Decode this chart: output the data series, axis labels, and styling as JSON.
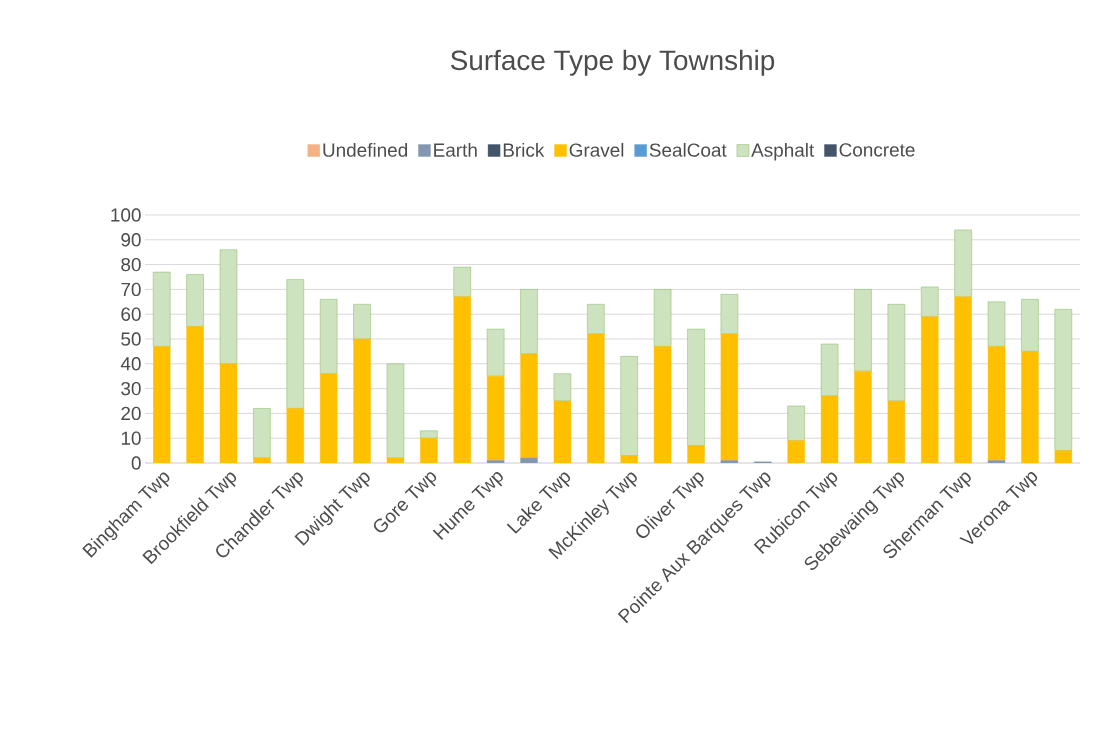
{
  "chart_data": {
    "type": "bar",
    "title": "Surface Type by Township",
    "stacked": true,
    "categories": [
      "Bingham Twp",
      null,
      "Brookfield Twp",
      null,
      "Chandler Twp",
      null,
      "Dwight Twp",
      null,
      "Gore Twp",
      null,
      "Hume Twp",
      null,
      "Lake Twp",
      null,
      "McKinley Twp",
      null,
      "Oliver Twp",
      null,
      "Pointe Aux Barques Twp",
      null,
      "Rubicon Twp",
      null,
      "Sebewaing Twp",
      null,
      "Sherman Twp",
      null,
      "Verona Twp",
      null
    ],
    "series": [
      {
        "name": "Undefined",
        "color": "#f4b183",
        "values": [
          0,
          0,
          0,
          0,
          0,
          0,
          0,
          0,
          0,
          0,
          0,
          0,
          0,
          0,
          0,
          0,
          0,
          0,
          0,
          0,
          0,
          0,
          0,
          0,
          0,
          0,
          0,
          0
        ]
      },
      {
        "name": "Earth",
        "color": "#8497b0",
        "values": [
          0,
          0,
          0,
          0,
          0,
          0,
          0,
          0,
          0,
          0,
          1,
          2,
          0,
          0,
          0,
          0,
          0,
          1,
          0.5,
          0,
          0,
          0,
          0,
          0,
          0,
          1,
          0,
          0
        ]
      },
      {
        "name": "Brick",
        "color": "#44546a",
        "values": [
          0,
          0,
          0,
          0,
          0,
          0,
          0,
          0,
          0,
          0,
          0,
          0,
          0,
          0,
          0,
          0,
          0,
          0,
          0,
          0,
          0,
          0,
          0,
          0,
          0,
          0,
          0,
          0
        ]
      },
      {
        "name": "Gravel",
        "color": "#ffc000",
        "values": [
          47,
          55,
          40,
          2,
          22,
          36,
          50,
          2,
          10,
          67,
          34,
          42,
          25,
          52,
          3,
          47,
          7,
          51,
          0,
          9,
          27,
          37,
          25,
          59,
          67,
          46,
          45,
          5
        ]
      },
      {
        "name": "SealCoat",
        "color": "#5b9bd5",
        "values": [
          0,
          0,
          0,
          0,
          0,
          0,
          0,
          0,
          0,
          0,
          0,
          0,
          0,
          0,
          0,
          0,
          0,
          0,
          0,
          0,
          0,
          0,
          0,
          0,
          0,
          0,
          0,
          0
        ]
      },
      {
        "name": "Asphalt",
        "color": "#70ad47",
        "values": [
          30,
          21,
          46,
          20,
          52,
          30,
          14,
          38,
          3,
          12,
          19,
          26,
          11,
          12,
          40,
          23,
          47,
          16,
          0,
          14,
          21,
          33,
          39,
          12,
          27,
          18,
          21,
          57
        ]
      },
      {
        "name": "Concrete",
        "color": "#44546a",
        "values": [
          0,
          0,
          0,
          0,
          0,
          0,
          0,
          0,
          0,
          0,
          0,
          0,
          0,
          0,
          0,
          0,
          0,
          0,
          0,
          0,
          0,
          0,
          0,
          0,
          0,
          0,
          0,
          0
        ]
      }
    ],
    "ylim": [
      0,
      100
    ],
    "yticks": [
      0,
      10,
      20,
      30,
      40,
      50,
      60,
      70,
      80,
      90,
      100
    ],
    "grid": "y",
    "legend": "top"
  }
}
